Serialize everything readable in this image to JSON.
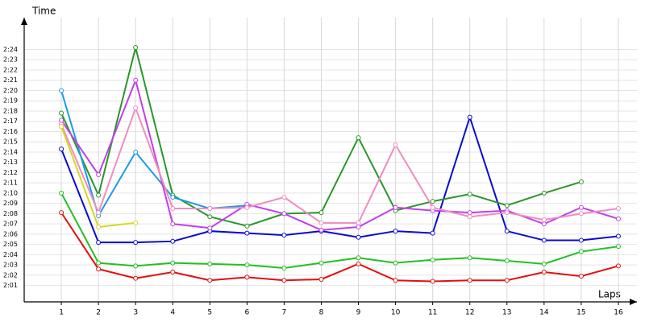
{
  "chart_data": {
    "type": "line",
    "ylabel": "Time",
    "xlabel": "Laps",
    "x": [
      1,
      2,
      3,
      4,
      5,
      6,
      7,
      8,
      9,
      10,
      11,
      12,
      13,
      14,
      15,
      16
    ],
    "xlim": [
      0,
      16.5
    ],
    "xticks": [
      1,
      2,
      3,
      4,
      5,
      6,
      7,
      8,
      9,
      10,
      11,
      12,
      13,
      14,
      15,
      16
    ],
    "ylim": [
      119.4,
      147.1
    ],
    "yticks": [
      {
        "value": 121,
        "label": "2:01"
      },
      {
        "value": 122,
        "label": "2:02"
      },
      {
        "value": 123,
        "label": "2:03"
      },
      {
        "value": 124,
        "label": "2:04"
      },
      {
        "value": 125,
        "label": "2:05"
      },
      {
        "value": 126,
        "label": "2:06"
      },
      {
        "value": 127,
        "label": "2:07"
      },
      {
        "value": 128,
        "label": "2:08"
      },
      {
        "value": 129,
        "label": "2:09"
      },
      {
        "value": 130,
        "label": "2:10"
      },
      {
        "value": 131,
        "label": "2:11"
      },
      {
        "value": 132,
        "label": "2:12"
      },
      {
        "value": 133,
        "label": "2:13"
      },
      {
        "value": 134,
        "label": "2:14"
      },
      {
        "value": 135,
        "label": "2:15"
      },
      {
        "value": 136,
        "label": "2:16"
      },
      {
        "value": 137,
        "label": "2:17"
      },
      {
        "value": 138,
        "label": "2:18"
      },
      {
        "value": 139,
        "label": "2:19"
      },
      {
        "value": 140,
        "label": "2:20"
      },
      {
        "value": 141,
        "label": "2:21"
      },
      {
        "value": 142,
        "label": "2:22"
      },
      {
        "value": 143,
        "label": "2:23"
      },
      {
        "value": 144,
        "label": "2:24"
      }
    ],
    "grid": true,
    "series": [
      {
        "color": "#e01010",
        "values": [
          128.1,
          122.6,
          121.7,
          122.3,
          121.5,
          121.8,
          121.5,
          121.6,
          123.1,
          121.5,
          121.4,
          121.5,
          121.5,
          122.3,
          121.9,
          122.9
        ]
      },
      {
        "color": "#22c022",
        "values": [
          130.0,
          123.2,
          122.9,
          123.2,
          123.1,
          123.0,
          122.7,
          123.2,
          123.7,
          123.2,
          123.5,
          123.7,
          123.4,
          123.1,
          124.3,
          124.8
        ]
      },
      {
        "color": "#0a0ad0",
        "values": [
          134.3,
          125.2,
          125.2,
          125.3,
          126.3,
          126.1,
          125.9,
          126.3,
          125.7,
          126.3,
          126.1,
          137.4,
          126.3,
          125.4,
          125.4,
          125.8
        ]
      },
      {
        "color": "#2a962a",
        "values": [
          137.8,
          129.8,
          144.2,
          129.8,
          127.7,
          126.8,
          128.0,
          128.1,
          135.4,
          128.3,
          129.2,
          129.9,
          128.8,
          130.0,
          131.1,
          null
        ]
      },
      {
        "color": "#1e9be6",
        "values": [
          140.0,
          127.8,
          134.0,
          129.6,
          128.5,
          128.8,
          null,
          null,
          null,
          null,
          null,
          null,
          null,
          null,
          null,
          null
        ]
      },
      {
        "color": "#c040e8",
        "values": [
          137.1,
          131.8,
          141.0,
          127.0,
          126.6,
          128.9,
          128.0,
          126.4,
          126.7,
          128.6,
          128.3,
          128.1,
          128.3,
          127.0,
          128.6,
          127.5
        ]
      },
      {
        "color": "#f08cc0",
        "values": [
          136.7,
          128.1,
          138.3,
          128.5,
          128.5,
          128.6,
          129.6,
          127.1,
          127.1,
          134.7,
          128.6,
          127.7,
          128.1,
          127.4,
          128.0,
          128.5
        ]
      },
      {
        "color": "#d8d820",
        "values": [
          136.5,
          126.7,
          127.1,
          null,
          null,
          null,
          null,
          null,
          null,
          null,
          null,
          null,
          null,
          null,
          null,
          null
        ]
      }
    ]
  }
}
